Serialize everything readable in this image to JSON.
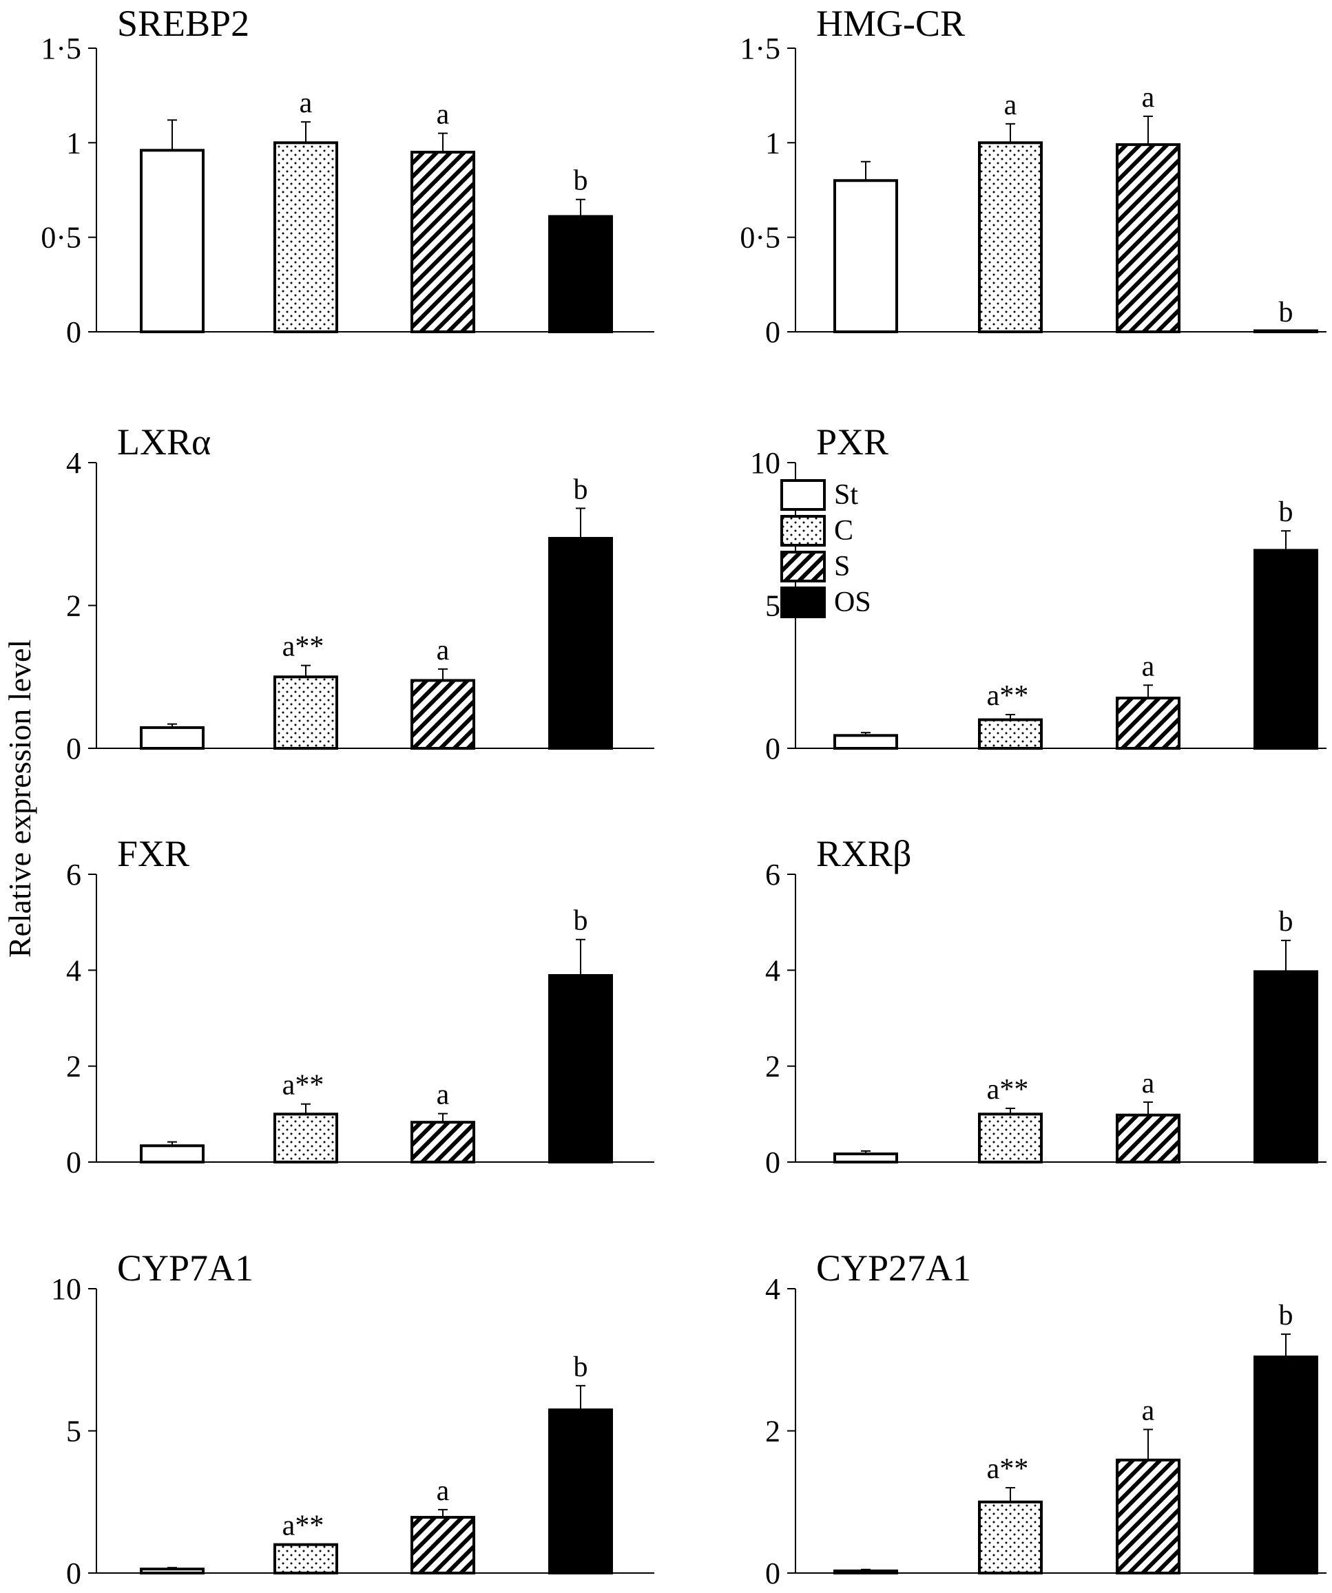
{
  "figure": {
    "ylabel": "Relative expression level",
    "groups": [
      "St",
      "C",
      "S",
      "OS"
    ],
    "legend": {
      "placement": "inside PXR panel, top-left",
      "entries": [
        {
          "label": "St",
          "fill": "open"
        },
        {
          "label": "C",
          "fill": "dotted"
        },
        {
          "label": "S",
          "fill": "hatched"
        },
        {
          "label": "OS",
          "fill": "solid"
        }
      ]
    }
  },
  "chart_data": [
    {
      "type": "bar",
      "title": "SREBP2",
      "categories": [
        "St",
        "C",
        "S",
        "OS"
      ],
      "values": [
        0.96,
        1.0,
        0.95,
        0.61
      ],
      "errors": [
        0.16,
        0.11,
        0.1,
        0.09
      ],
      "labels": [
        "",
        "a",
        "a",
        "b"
      ],
      "ylim": [
        0,
        1.5
      ],
      "yticks": [
        0,
        0.5,
        1,
        1.5
      ],
      "ytick_labels": [
        "0",
        "0·5",
        "1",
        "1·5"
      ]
    },
    {
      "type": "bar",
      "title": "HMG-CR",
      "categories": [
        "St",
        "C",
        "S",
        "OS"
      ],
      "values": [
        0.8,
        1.0,
        0.99,
        0.003
      ],
      "errors": [
        0.1,
        0.1,
        0.15,
        0.0
      ],
      "labels": [
        "",
        "a",
        "a",
        "b"
      ],
      "ylim": [
        0,
        1.5
      ],
      "yticks": [
        0,
        0.5,
        1,
        1.5
      ],
      "ytick_labels": [
        "0",
        "0·5",
        "1",
        "1·5"
      ]
    },
    {
      "type": "bar",
      "title": "LXRα",
      "categories": [
        "St",
        "C",
        "S",
        "OS"
      ],
      "values": [
        0.29,
        1.0,
        0.95,
        2.94
      ],
      "errors": [
        0.05,
        0.16,
        0.16,
        0.42
      ],
      "labels": [
        "",
        "a**",
        "a",
        "b"
      ],
      "ylim": [
        0,
        4
      ],
      "yticks": [
        0,
        2,
        4
      ],
      "ytick_labels": [
        "0",
        "2",
        "4"
      ]
    },
    {
      "type": "bar",
      "title": "PXR",
      "categories": [
        "St",
        "C",
        "S",
        "OS"
      ],
      "values": [
        0.45,
        1.0,
        1.76,
        6.93
      ],
      "errors": [
        0.1,
        0.18,
        0.45,
        0.68
      ],
      "labels": [
        "",
        "a**",
        "a",
        "b"
      ],
      "ylim": [
        0,
        10
      ],
      "yticks": [
        0,
        5,
        10
      ],
      "ytick_labels": [
        "0",
        "5",
        "10"
      ]
    },
    {
      "type": "bar",
      "title": "FXR",
      "categories": [
        "St",
        "C",
        "S",
        "OS"
      ],
      "values": [
        0.34,
        1.0,
        0.83,
        3.89
      ],
      "errors": [
        0.08,
        0.21,
        0.18,
        0.75
      ],
      "labels": [
        "",
        "a**",
        "a",
        "b"
      ],
      "ylim": [
        0,
        6
      ],
      "yticks": [
        0,
        2,
        4,
        6
      ],
      "ytick_labels": [
        "0",
        "2",
        "4",
        "6"
      ]
    },
    {
      "type": "bar",
      "title": "RXRβ",
      "categories": [
        "St",
        "C",
        "S",
        "OS"
      ],
      "values": [
        0.17,
        1.0,
        0.98,
        3.97
      ],
      "errors": [
        0.06,
        0.12,
        0.27,
        0.65
      ],
      "labels": [
        "",
        "a**",
        "a",
        "b"
      ],
      "ylim": [
        0,
        6
      ],
      "yticks": [
        0,
        2,
        4,
        6
      ],
      "ytick_labels": [
        "0",
        "2",
        "4",
        "6"
      ]
    },
    {
      "type": "bar",
      "title": "CYP7A1",
      "categories": [
        "St",
        "C",
        "S",
        "OS"
      ],
      "values": [
        0.14,
        1.0,
        1.96,
        5.74
      ],
      "errors": [
        0.05,
        0.0,
        0.27,
        0.85
      ],
      "labels": [
        "",
        "a**",
        "a",
        "b"
      ],
      "ylim": [
        0,
        10
      ],
      "yticks": [
        0,
        5,
        10
      ],
      "ytick_labels": [
        "0",
        "5",
        "10"
      ]
    },
    {
      "type": "bar",
      "title": "CYP27A1",
      "categories": [
        "St",
        "C",
        "S",
        "OS"
      ],
      "values": [
        0.03,
        1.0,
        1.59,
        3.04
      ],
      "errors": [
        0.02,
        0.2,
        0.43,
        0.32
      ],
      "labels": [
        "",
        "a**",
        "a",
        "b"
      ],
      "ylim": [
        0,
        4
      ],
      "yticks": [
        0,
        2,
        4
      ],
      "ytick_labels": [
        "0",
        "2",
        "4"
      ]
    }
  ]
}
